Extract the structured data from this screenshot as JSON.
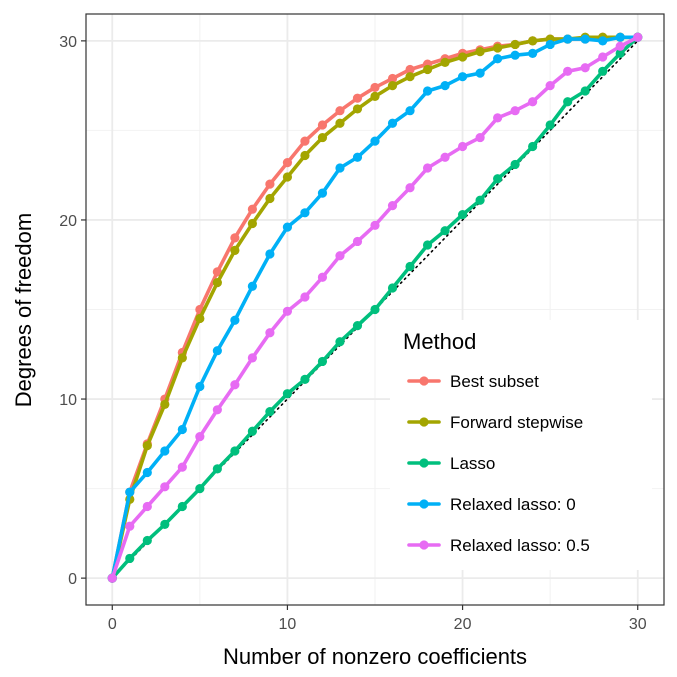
{
  "chart_data": {
    "type": "line",
    "xlabel": "Number of nonzero coefficients",
    "ylabel": "Degrees of freedom",
    "xlim": [
      -1.5,
      31.5
    ],
    "ylim": [
      -1.5,
      31.5
    ],
    "x_ticks": [
      0,
      10,
      20,
      30
    ],
    "y_ticks": [
      0,
      10,
      20,
      30
    ],
    "grid": true,
    "legend": {
      "title": "Method",
      "placement": "right"
    },
    "reference_line": {
      "style": "dotted",
      "color": "#000000",
      "from": [
        0,
        0
      ],
      "to": [
        30,
        30
      ]
    },
    "x": [
      0,
      1,
      2,
      3,
      4,
      5,
      6,
      7,
      8,
      9,
      10,
      11,
      12,
      13,
      14,
      15,
      16,
      17,
      18,
      19,
      20,
      21,
      22,
      23,
      24,
      25,
      26,
      27,
      28,
      29,
      30
    ],
    "series": [
      {
        "name": "Best subset",
        "color": "#F8766D",
        "values": [
          0,
          4.8,
          7.5,
          10.0,
          12.6,
          15.0,
          17.1,
          19.0,
          20.6,
          22.0,
          23.2,
          24.4,
          25.3,
          26.1,
          26.8,
          27.4,
          27.9,
          28.4,
          28.7,
          29.0,
          29.3,
          29.5,
          29.7,
          29.8,
          30.0,
          30.1,
          30.1,
          30.1,
          30.2,
          30.2,
          30.2
        ]
      },
      {
        "name": "Forward stepwise",
        "color": "#A3A500",
        "values": [
          0,
          4.4,
          7.4,
          9.7,
          12.3,
          14.5,
          16.5,
          18.3,
          19.8,
          21.2,
          22.4,
          23.6,
          24.6,
          25.4,
          26.2,
          26.9,
          27.5,
          28.0,
          28.4,
          28.8,
          29.1,
          29.4,
          29.6,
          29.8,
          30.0,
          30.1,
          30.1,
          30.2,
          30.2,
          30.2,
          30.2
        ]
      },
      {
        "name": "Lasso",
        "color": "#00BF7D",
        "values": [
          0,
          1.1,
          2.1,
          3.0,
          4.0,
          5.0,
          6.1,
          7.1,
          8.2,
          9.3,
          10.3,
          11.1,
          12.1,
          13.2,
          14.1,
          15.0,
          16.2,
          17.4,
          18.6,
          19.4,
          20.3,
          21.1,
          22.3,
          23.1,
          24.1,
          25.3,
          26.6,
          27.2,
          28.3,
          29.3,
          30.2
        ]
      },
      {
        "name": "Relaxed lasso: 0",
        "color": "#00B0F6",
        "values": [
          0,
          4.8,
          5.9,
          7.1,
          8.3,
          10.7,
          12.7,
          14.4,
          16.3,
          18.1,
          19.6,
          20.4,
          21.5,
          22.9,
          23.5,
          24.4,
          25.4,
          26.1,
          27.2,
          27.5,
          28.0,
          28.2,
          29.0,
          29.2,
          29.3,
          29.8,
          30.1,
          30.1,
          30.0,
          30.2,
          30.2
        ]
      },
      {
        "name": "Relaxed lasso: 0.5",
        "color": "#E76BF3",
        "values": [
          0,
          2.9,
          4.0,
          5.1,
          6.2,
          7.9,
          9.4,
          10.8,
          12.3,
          13.7,
          14.9,
          15.7,
          16.8,
          18.0,
          18.8,
          19.7,
          20.8,
          21.8,
          22.9,
          23.5,
          24.1,
          24.6,
          25.7,
          26.1,
          26.6,
          27.5,
          28.3,
          28.5,
          29.1,
          29.7,
          30.2
        ]
      }
    ]
  }
}
